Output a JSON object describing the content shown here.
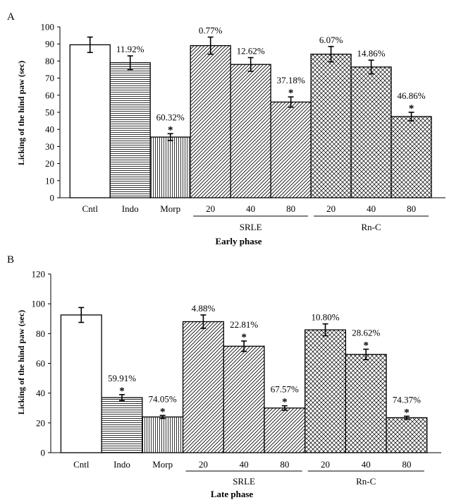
{
  "colors": {
    "ink": "#000000",
    "bar_edge": "#000000",
    "background": "#ffffff"
  },
  "chart_data": [
    {
      "panel_label": "A",
      "type": "bar",
      "title": "",
      "ylabel": "Licking of the hind paw (sec)",
      "xlabel": "Early phase",
      "ylim": [
        0,
        100
      ],
      "yticks": [
        "0",
        "10",
        "20",
        "30",
        "40",
        "50",
        "60",
        "70",
        "80",
        "90",
        "100"
      ],
      "groups": [
        {
          "label": "SRLE",
          "categories": [
            "20",
            "40",
            "80"
          ]
        },
        {
          "label": "Rn-C",
          "categories": [
            "20",
            "40",
            "80"
          ]
        }
      ],
      "categories": [
        "Cntl",
        "Indo",
        "Morp",
        "20",
        "40",
        "80",
        "20",
        "40",
        "80"
      ],
      "values": [
        89.5,
        79,
        35.5,
        89,
        78,
        56,
        84,
        76.5,
        47.5
      ],
      "errors": [
        4.5,
        4,
        2,
        5,
        4,
        3,
        4.5,
        4,
        2.5
      ],
      "patterns": [
        "none",
        "horizontal",
        "vertical",
        "diagonal",
        "diagonal",
        "diagonal",
        "cross",
        "cross",
        "cross"
      ],
      "percent_labels": [
        "",
        "11.92%",
        "60.32%",
        "0.77%",
        "12.62%",
        "37.18%",
        "6.07%",
        "14.86%",
        "46.86%"
      ],
      "significance": [
        "",
        "",
        "*",
        "",
        "",
        "*",
        "",
        "",
        "*"
      ]
    },
    {
      "panel_label": "B",
      "type": "bar",
      "title": "",
      "ylabel": "Licking of the hind paw (sec)",
      "xlabel": "Late phase",
      "ylim": [
        0,
        120
      ],
      "yticks": [
        "0",
        "20",
        "40",
        "60",
        "80",
        "100",
        "120"
      ],
      "groups": [
        {
          "label": "SRLE",
          "categories": [
            "20",
            "40",
            "80"
          ]
        },
        {
          "label": "Rn-C",
          "categories": [
            "20",
            "40",
            "80"
          ]
        }
      ],
      "categories": [
        "Cntl",
        "Indo",
        "Morp",
        "20",
        "40",
        "80",
        "20",
        "40",
        "80"
      ],
      "values": [
        92.5,
        37,
        24,
        88,
        71.5,
        30,
        82.5,
        66,
        23.5
      ],
      "errors": [
        5,
        2,
        1,
        4.5,
        3.5,
        1.5,
        4,
        3.5,
        1
      ],
      "patterns": [
        "none",
        "horizontal",
        "vertical",
        "diagonal",
        "diagonal",
        "diagonal",
        "cross",
        "cross",
        "cross"
      ],
      "percent_labels": [
        "",
        "59.91%",
        "74.05%",
        "4.88%",
        "22.81%",
        "67.57%",
        "10.80%",
        "28.62%",
        "74.37%"
      ],
      "significance": [
        "",
        "*",
        "*",
        "",
        "*",
        "*",
        "",
        "*",
        "*"
      ]
    }
  ]
}
